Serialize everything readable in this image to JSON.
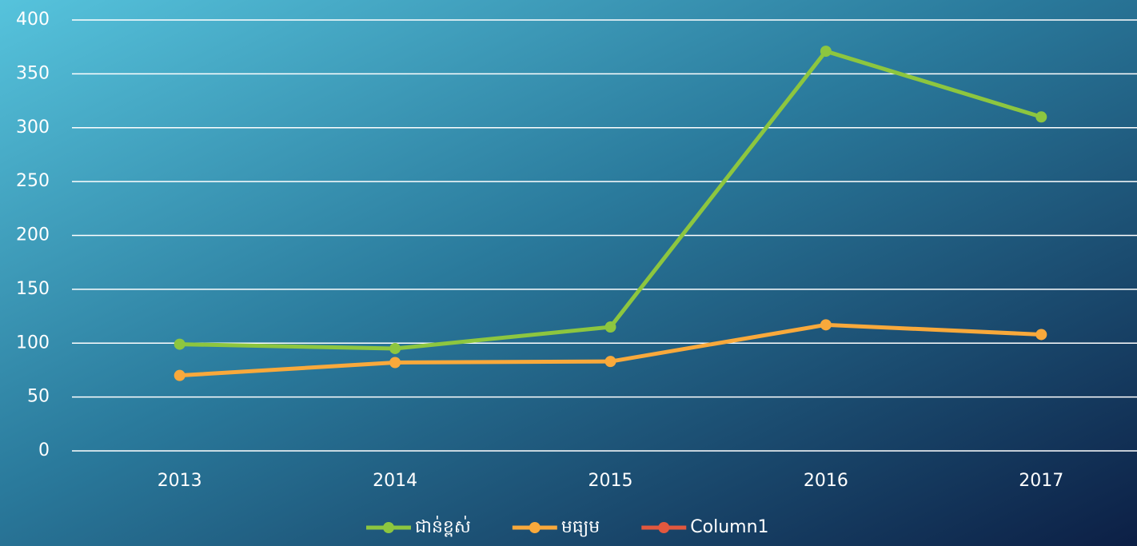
{
  "chart_data": {
    "type": "line",
    "categories": [
      "2013",
      "2014",
      "2015",
      "2016",
      "2017"
    ],
    "series": [
      {
        "name": "ជាន់ខ្ពស់",
        "color": "#8dc63f",
        "values": [
          99,
          95,
          115,
          371,
          310
        ]
      },
      {
        "name": "មធ្យម",
        "color": "#f9a93b",
        "values": [
          70,
          82,
          83,
          117,
          108
        ]
      },
      {
        "name": "Column1",
        "color": "#e2583e",
        "values": [
          null,
          null,
          null,
          null,
          null
        ]
      }
    ],
    "ylim": [
      0,
      400
    ],
    "yticks": [
      0,
      50,
      100,
      150,
      200,
      250,
      300,
      350,
      400
    ],
    "grid": true,
    "legend": "bottom"
  }
}
